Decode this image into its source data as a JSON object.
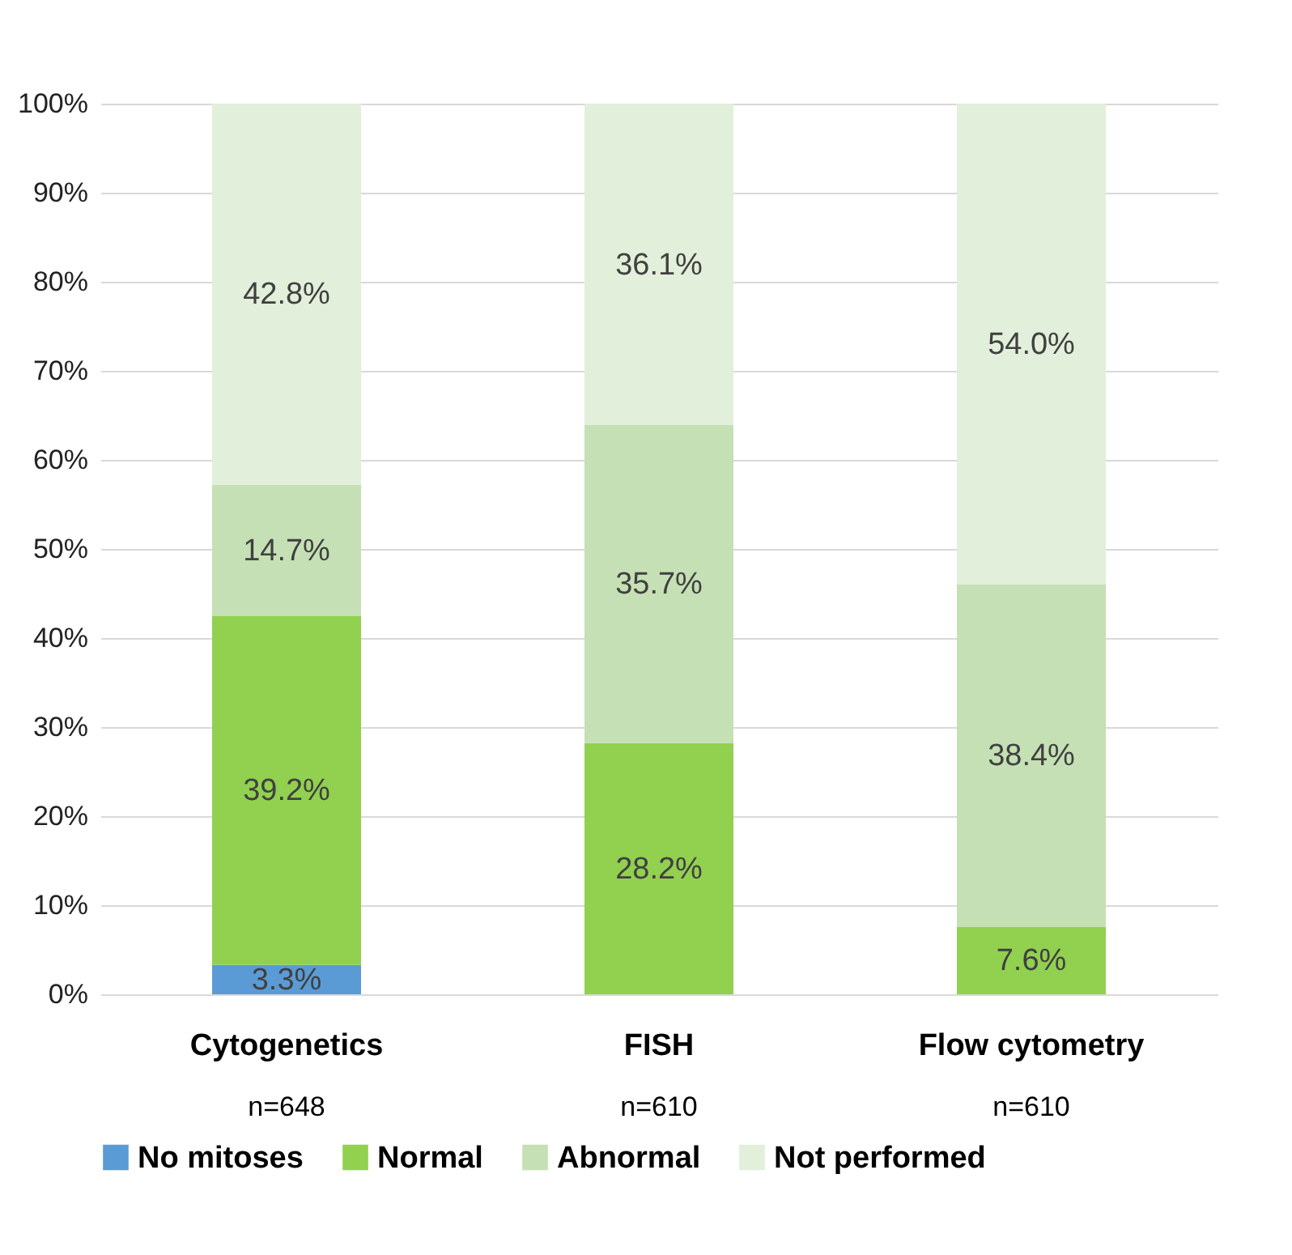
{
  "chart_data": {
    "type": "bar",
    "stacked": true,
    "categories": [
      "Cytogenetics",
      "FISH",
      "Flow cytometry"
    ],
    "series": [
      {
        "name": "No mitoses",
        "color": "#5b9bd5",
        "values": [
          3.3,
          null,
          null
        ],
        "value_labels": [
          "3.3%",
          null,
          null
        ]
      },
      {
        "name": "Normal",
        "color": "#92d050",
        "values": [
          39.2,
          28.2,
          7.6
        ],
        "value_labels": [
          "39.2%",
          "28.2%",
          "7.6%"
        ]
      },
      {
        "name": "Abnormal",
        "color": "#c5e0b4",
        "values": [
          14.7,
          35.7,
          38.4
        ],
        "value_labels": [
          "14.7%",
          "35.7%",
          "38.4%"
        ]
      },
      {
        "name": "Not performed",
        "color": "#e2efda",
        "values": [
          42.8,
          36.1,
          54.0
        ],
        "value_labels": [
          "42.8%",
          "36.1%",
          "54.0%"
        ]
      }
    ],
    "ylim": [
      0,
      100
    ],
    "yticks": [
      {
        "value": 0,
        "label": "0%"
      },
      {
        "value": 10,
        "label": "10%"
      },
      {
        "value": 20,
        "label": "20%"
      },
      {
        "value": 30,
        "label": "30%"
      },
      {
        "value": 40,
        "label": "40%"
      },
      {
        "value": 50,
        "label": "50%"
      },
      {
        "value": 60,
        "label": "60%"
      },
      {
        "value": 70,
        "label": "70%"
      },
      {
        "value": 80,
        "label": "80%"
      },
      {
        "value": 90,
        "label": "90%"
      },
      {
        "value": 100,
        "label": "100%"
      }
    ],
    "annotations": [
      "n=648",
      "n=610",
      "n=610"
    ],
    "grid": "y",
    "legend": "bottom"
  }
}
